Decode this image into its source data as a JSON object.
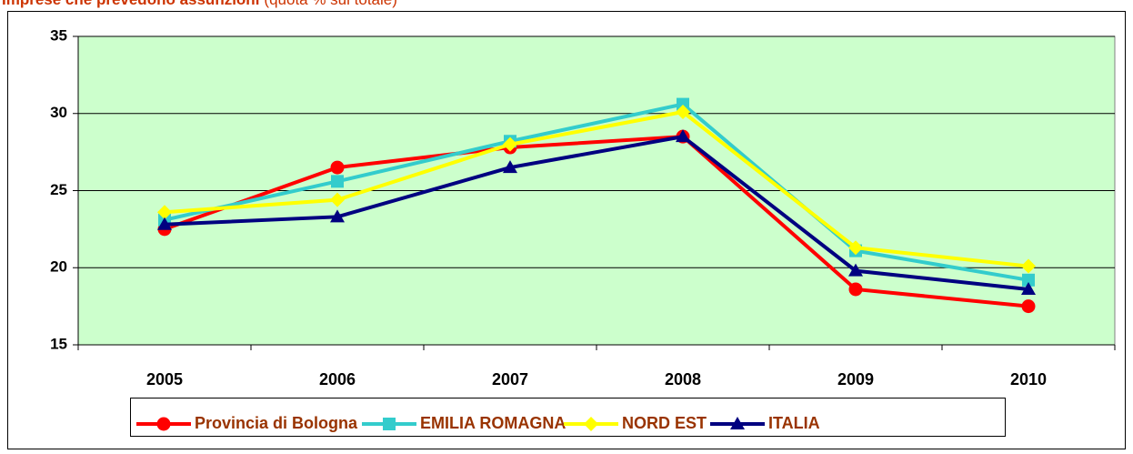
{
  "chart_data": {
    "type": "line",
    "title": "Imprese che prevedono assunzioni",
    "subtitle": "(quota % sul totale)",
    "categories": [
      "2005",
      "2006",
      "2007",
      "2008",
      "2009",
      "2010"
    ],
    "series": [
      {
        "name": "Provincia di Bologna",
        "color": "#ff0000",
        "marker": "circle",
        "values": [
          22.5,
          26.5,
          27.8,
          28.5,
          18.6,
          17.5
        ]
      },
      {
        "name": "EMILIA ROMAGNA",
        "color": "#33cccc",
        "marker": "square",
        "values": [
          23.1,
          25.6,
          28.2,
          30.6,
          21.1,
          19.2
        ]
      },
      {
        "name": "NORD EST",
        "color": "#ffff00",
        "marker": "diamond",
        "values": [
          23.6,
          24.4,
          28.0,
          30.1,
          21.3,
          20.1
        ]
      },
      {
        "name": "ITALIA",
        "color": "#000080",
        "marker": "triangle",
        "values": [
          22.8,
          23.3,
          26.5,
          28.5,
          19.8,
          18.6
        ]
      }
    ],
    "ylim": [
      15,
      35
    ],
    "yticks": [
      15,
      20,
      25,
      30,
      35
    ],
    "grid": true,
    "plot_background": "#ccffcc",
    "legend": "bottom"
  }
}
